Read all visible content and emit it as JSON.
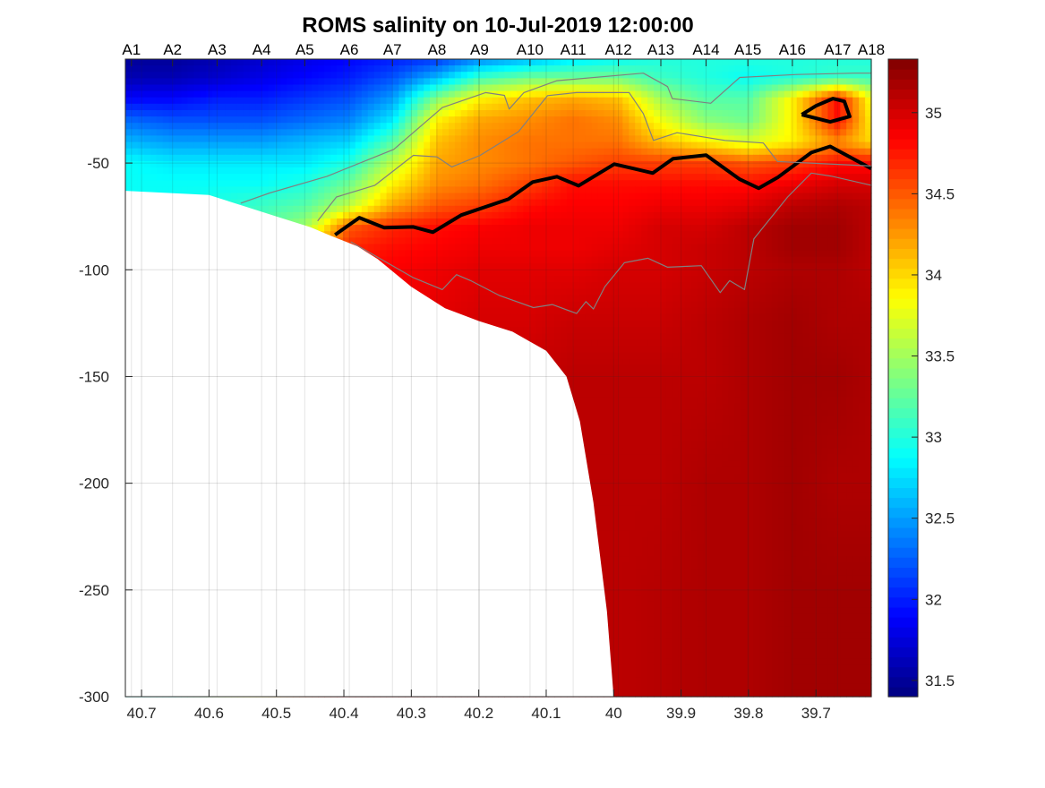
{
  "chart_data": {
    "type": "heatmap",
    "title": "ROMS salinity on 10-Jul-2019 12:00:00",
    "xlabel": "",
    "ylabel": "",
    "xlim": [
      39.618,
      40.724
    ],
    "x_reversed": true,
    "ylim": [
      -300,
      -1.3
    ],
    "grid": true,
    "xticks": [
      40.7,
      40.6,
      40.5,
      40.4,
      40.3,
      40.2,
      40.1,
      40,
      39.9,
      39.8,
      39.7
    ],
    "xtick_labels": [
      "40.7",
      "40.6",
      "40.5",
      "40.4",
      "40.3",
      "40.2",
      "40.1",
      "40",
      "39.9",
      "39.8",
      "39.7"
    ],
    "yticks": [
      -300,
      -250,
      -200,
      -150,
      -100,
      -50
    ],
    "ytick_labels": [
      "-300",
      "-250",
      "-200",
      "-150",
      "-100",
      "-50"
    ],
    "stations": {
      "labels": [
        "A1",
        "A2",
        "A3",
        "A4",
        "A5",
        "A6",
        "A7",
        "A8",
        "A9",
        "A10",
        "A11",
        "A12",
        "A13",
        "A14",
        "A15",
        "A16",
        "A17",
        "A18"
      ],
      "lon": [
        40.715,
        40.654,
        40.588,
        40.522,
        40.458,
        40.392,
        40.328,
        40.262,
        40.199,
        40.124,
        40.06,
        39.993,
        39.93,
        39.863,
        39.801,
        39.735,
        39.668,
        39.618
      ]
    },
    "colorbar": {
      "colormap": "jet",
      "clim": [
        31.4,
        35.33
      ],
      "ticks": [
        31.5,
        32,
        32.5,
        33,
        33.5,
        34,
        34.5,
        35
      ],
      "tick_labels": [
        "31.5",
        "32",
        "32.5",
        "33",
        "33.5",
        "34",
        "34.5",
        "35"
      ]
    },
    "field": {
      "lon": [
        40.724,
        40.654,
        40.588,
        40.522,
        40.458,
        40.392,
        40.328,
        40.262,
        40.199,
        40.124,
        40.06,
        39.993,
        39.93,
        39.863,
        39.801,
        39.735,
        39.668,
        39.618
      ],
      "depth": [
        -1.3,
        -10,
        -20,
        -30,
        -40,
        -50,
        -60,
        -70,
        -80,
        -90,
        -100,
        -125,
        -150,
        -200,
        -250,
        -300
      ],
      "salinity": [
        [
          31.5,
          31.5,
          31.6,
          31.7,
          31.8,
          31.9,
          32.0,
          32.1,
          32.4,
          32.6,
          32.8,
          32.9,
          33.0,
          33.0,
          33.0,
          33.0,
          33.0,
          33.0
        ],
        [
          31.6,
          31.6,
          31.7,
          31.8,
          31.9,
          32.0,
          32.2,
          32.6,
          33.1,
          33.3,
          33.3,
          33.3,
          33.1,
          33.0,
          32.9,
          33.0,
          33.1,
          33.1
        ],
        [
          31.9,
          31.9,
          32.0,
          32.0,
          32.1,
          32.2,
          32.5,
          33.4,
          33.9,
          34.1,
          34.2,
          34.1,
          33.5,
          33.2,
          33.2,
          33.9,
          34.8,
          33.8
        ],
        [
          32.3,
          32.2,
          32.2,
          32.2,
          32.3,
          32.4,
          32.8,
          33.9,
          34.2,
          34.3,
          34.4,
          34.3,
          33.8,
          33.4,
          33.3,
          33.9,
          34.8,
          33.9
        ],
        [
          32.6,
          32.5,
          32.5,
          32.5,
          32.6,
          32.7,
          33.2,
          34.1,
          34.3,
          34.4,
          34.4,
          34.4,
          34.1,
          33.9,
          33.7,
          33.9,
          34.3,
          34.0
        ],
        [
          32.9,
          32.8,
          32.8,
          32.8,
          32.8,
          33.0,
          33.6,
          34.2,
          34.3,
          34.4,
          34.5,
          34.6,
          34.6,
          34.6,
          34.5,
          34.6,
          34.8,
          34.8
        ],
        [
          32.9,
          32.9,
          32.9,
          32.9,
          33.0,
          33.3,
          33.9,
          34.3,
          34.4,
          34.6,
          34.8,
          34.8,
          34.8,
          34.8,
          34.8,
          34.9,
          35.0,
          35.0
        ],
        [
          32.9,
          32.9,
          33.0,
          33.1,
          33.2,
          33.6,
          34.2,
          34.5,
          34.6,
          34.8,
          34.85,
          34.85,
          34.9,
          34.9,
          34.95,
          35.1,
          35.15,
          35.1
        ],
        [
          33.0,
          33.0,
          33.1,
          33.2,
          33.5,
          34.5,
          34.7,
          34.8,
          34.85,
          34.9,
          34.9,
          34.9,
          35.0,
          35.0,
          35.1,
          35.2,
          35.2,
          35.1
        ],
        [
          33.0,
          33.0,
          33.2,
          33.4,
          34.0,
          34.7,
          34.8,
          34.85,
          34.9,
          34.9,
          34.9,
          34.95,
          35.0,
          35.05,
          35.1,
          35.2,
          35.2,
          35.1
        ],
        [
          33.0,
          33.0,
          33.3,
          33.6,
          34.3,
          34.8,
          34.85,
          34.9,
          34.95,
          34.95,
          34.95,
          35.0,
          35.0,
          35.05,
          35.1,
          35.15,
          35.15,
          35.1
        ],
        [
          33.0,
          33.0,
          33.4,
          33.8,
          34.5,
          34.85,
          34.9,
          34.95,
          35.0,
          35.0,
          35.05,
          35.05,
          35.05,
          35.1,
          35.15,
          35.2,
          35.15,
          35.15
        ],
        [
          33.0,
          33.0,
          33.5,
          34.0,
          34.6,
          34.9,
          34.95,
          35.0,
          35.05,
          35.05,
          35.1,
          35.1,
          35.1,
          35.1,
          35.15,
          35.2,
          35.2,
          35.15
        ],
        [
          33.0,
          33.0,
          33.5,
          34.0,
          34.6,
          34.9,
          35.0,
          35.05,
          35.05,
          35.1,
          35.1,
          35.1,
          35.1,
          35.15,
          35.15,
          35.2,
          35.15,
          35.15
        ],
        [
          33.0,
          33.0,
          33.5,
          34.0,
          34.6,
          34.9,
          35.0,
          35.05,
          35.05,
          35.1,
          35.1,
          35.1,
          35.12,
          35.15,
          35.15,
          35.2,
          35.2,
          35.2
        ],
        [
          33.0,
          33.0,
          33.5,
          34.0,
          34.6,
          34.9,
          35.0,
          35.05,
          35.05,
          35.1,
          35.1,
          35.1,
          35.12,
          35.15,
          35.15,
          35.2,
          35.2,
          35.2
        ]
      ]
    },
    "bathymetry": [
      [
        40.724,
        -63
      ],
      [
        40.6,
        -65
      ],
      [
        40.55,
        -70
      ],
      [
        40.5,
        -75
      ],
      [
        40.45,
        -80
      ],
      [
        40.42,
        -84
      ],
      [
        40.38,
        -89
      ],
      [
        40.35,
        -95
      ],
      [
        40.3,
        -108
      ],
      [
        40.25,
        -118
      ],
      [
        40.2,
        -124
      ],
      [
        40.15,
        -129
      ],
      [
        40.1,
        -138
      ],
      [
        40.07,
        -150
      ],
      [
        40.05,
        -171
      ],
      [
        40.03,
        -209
      ],
      [
        40.01,
        -260
      ],
      [
        40.0,
        -300
      ]
    ],
    "contours": [
      {
        "style": "bold",
        "color": "#000000",
        "points": [
          [
            40.413,
            -83.6
          ],
          [
            40.377,
            -75.6
          ],
          [
            40.34,
            -80.3
          ],
          [
            40.297,
            -79.9
          ],
          [
            40.268,
            -82.4
          ],
          [
            40.226,
            -74.4
          ],
          [
            40.156,
            -66.9
          ],
          [
            40.12,
            -58.9
          ],
          [
            40.084,
            -56.4
          ],
          [
            40.052,
            -60.6
          ],
          [
            39.999,
            -50.5
          ],
          [
            39.97,
            -52.6
          ],
          [
            39.942,
            -54.7
          ],
          [
            39.912,
            -48.0
          ],
          [
            39.863,
            -46.3
          ],
          [
            39.813,
            -57.6
          ],
          [
            39.785,
            -61.8
          ],
          [
            39.757,
            -56.8
          ],
          [
            39.707,
            -45.1
          ],
          [
            39.679,
            -42.2
          ],
          [
            39.618,
            -52.6
          ]
        ]
      },
      {
        "style": "bold",
        "color": "#000000",
        "points": [
          [
            39.721,
            -27.3
          ],
          [
            39.7,
            -23.2
          ],
          [
            39.675,
            -19.8
          ],
          [
            39.658,
            -21.1
          ],
          [
            39.65,
            -28.2
          ],
          [
            39.679,
            -30.7
          ],
          [
            39.721,
            -27.3
          ]
        ]
      },
      {
        "style": "thin",
        "color": "#808080",
        "points": [
          [
            40.553,
            -68.8
          ],
          [
            40.51,
            -64.0
          ],
          [
            40.425,
            -56.2
          ],
          [
            40.326,
            -43.6
          ],
          [
            40.254,
            -24.0
          ],
          [
            40.19,
            -17.0
          ],
          [
            40.162,
            -18.3
          ],
          [
            40.155,
            -24.7
          ],
          [
            40.133,
            -17.0
          ],
          [
            40.084,
            -11.4
          ],
          [
            39.956,
            -7.9
          ],
          [
            39.92,
            -14.2
          ],
          [
            39.913,
            -19.8
          ],
          [
            39.856,
            -22.0
          ],
          [
            39.813,
            -9.9
          ],
          [
            39.728,
            -8.5
          ],
          [
            39.643,
            -7.9
          ],
          [
            39.618,
            -7.9
          ]
        ]
      },
      {
        "style": "thin",
        "color": "#808080",
        "points": [
          [
            40.439,
            -77.1
          ],
          [
            40.411,
            -65.9
          ],
          [
            40.354,
            -60.4
          ],
          [
            40.297,
            -46.4
          ],
          [
            40.262,
            -47.1
          ],
          [
            40.24,
            -51.8
          ],
          [
            40.198,
            -46.4
          ],
          [
            40.141,
            -35.3
          ],
          [
            40.098,
            -18.4
          ],
          [
            40.055,
            -17.0
          ],
          [
            39.977,
            -17.0
          ],
          [
            39.956,
            -26.8
          ],
          [
            39.941,
            -39.4
          ],
          [
            39.906,
            -35.8
          ],
          [
            39.835,
            -39.4
          ],
          [
            39.778,
            -40.6
          ],
          [
            39.757,
            -49.3
          ],
          [
            39.618,
            -51.4
          ]
        ]
      },
      {
        "style": "thin",
        "color": "#808080",
        "points": [
          [
            40.39,
            -86.9
          ],
          [
            40.297,
            -103.7
          ],
          [
            40.254,
            -109.3
          ],
          [
            40.233,
            -102.3
          ],
          [
            40.212,
            -105.1
          ],
          [
            40.169,
            -112.1
          ],
          [
            40.119,
            -117.7
          ],
          [
            40.091,
            -116.3
          ],
          [
            40.055,
            -120.5
          ],
          [
            40.041,
            -114.9
          ],
          [
            40.03,
            -118.4
          ],
          [
            40.013,
            -107.9
          ],
          [
            39.984,
            -96.7
          ],
          [
            39.949,
            -94.6
          ],
          [
            39.92,
            -98.8
          ],
          [
            39.87,
            -98.1
          ],
          [
            39.842,
            -110.7
          ],
          [
            39.828,
            -105.1
          ],
          [
            39.806,
            -109.3
          ],
          [
            39.792,
            -85.5
          ],
          [
            39.742,
            -65.9
          ],
          [
            39.707,
            -54.7
          ],
          [
            39.678,
            -56.1
          ],
          [
            39.618,
            -60.4
          ]
        ]
      }
    ]
  }
}
